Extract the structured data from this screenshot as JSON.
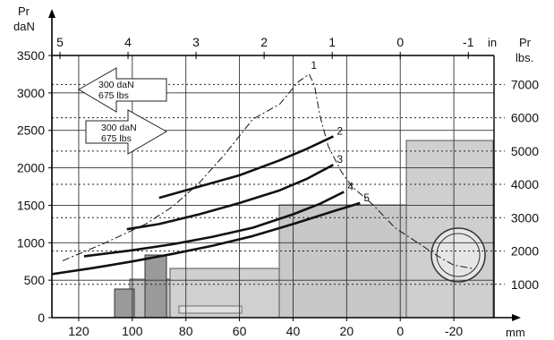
{
  "chart_data": {
    "type": "line",
    "units": {
      "y_left_top": "Pr",
      "y_left_bottom": "daN",
      "y_right_top": "Pr",
      "y_right_bottom": "lbs.",
      "x_bottom": "mm",
      "x_top": "in"
    },
    "x_bottom": {
      "ticks": [
        120,
        100,
        80,
        60,
        40,
        20,
        0,
        -20
      ],
      "labels": [
        "120",
        "100",
        "80",
        "60",
        "40",
        "20",
        "0",
        "-20"
      ],
      "range": [
        130,
        -35
      ]
    },
    "x_top": {
      "ticks": [
        5,
        4,
        3,
        2,
        1,
        0,
        -1
      ],
      "labels": [
        "5",
        "4",
        "3",
        "2",
        "1",
        "0",
        "-1"
      ]
    },
    "y_left": {
      "ticks": [
        0,
        500,
        1000,
        1500,
        2000,
        2500,
        3000,
        3500
      ],
      "labels": [
        "0",
        "500",
        "1000",
        "1500",
        "2000",
        "2500",
        "3000",
        "3500"
      ],
      "range": [
        0,
        3500
      ]
    },
    "y_right": {
      "ticks": [
        1000,
        2000,
        3000,
        4000,
        5000,
        6000,
        7000
      ],
      "labels": [
        "1000",
        "2000",
        "3000",
        "4000",
        "5000",
        "6000",
        "7000"
      ]
    },
    "annotations": {
      "left_arrow_line1": "300 daN",
      "left_arrow_line2": "675 lbs",
      "right_arrow_line1": "300 daN",
      "right_arrow_line2": "675 lbs"
    },
    "series": [
      {
        "name": "1",
        "style": "dashdot",
        "x": [
          126,
          110,
          95,
          85,
          75,
          65,
          55,
          45,
          38,
          34,
          32,
          30,
          27,
          22,
          18,
          10,
          2,
          -15,
          -20,
          -28
        ],
        "y": [
          760,
          1000,
          1250,
          1480,
          1800,
          2200,
          2650,
          2850,
          3150,
          3250,
          3100,
          2700,
          2300,
          1950,
          1750,
          1500,
          1200,
          800,
          700,
          650
        ]
      },
      {
        "name": "2",
        "style": "solid",
        "x": [
          90,
          75,
          60,
          45,
          35,
          25
        ],
        "y": [
          1600,
          1750,
          1900,
          2100,
          2250,
          2420
        ]
      },
      {
        "name": "3",
        "style": "solid",
        "x": [
          102,
          90,
          75,
          60,
          45,
          35,
          25
        ],
        "y": [
          1180,
          1250,
          1380,
          1530,
          1700,
          1850,
          2040
        ]
      },
      {
        "name": "4",
        "style": "solid",
        "x": [
          118,
          100,
          85,
          70,
          55,
          40,
          30,
          21
        ],
        "y": [
          820,
          900,
          980,
          1080,
          1200,
          1380,
          1520,
          1680
        ]
      },
      {
        "name": "5",
        "style": "solid",
        "x": [
          130,
          115,
          100,
          85,
          70,
          55,
          40,
          25,
          15
        ],
        "y": [
          580,
          660,
          750,
          850,
          960,
          1090,
          1250,
          1420,
          1530
        ]
      }
    ],
    "grid": true
  }
}
